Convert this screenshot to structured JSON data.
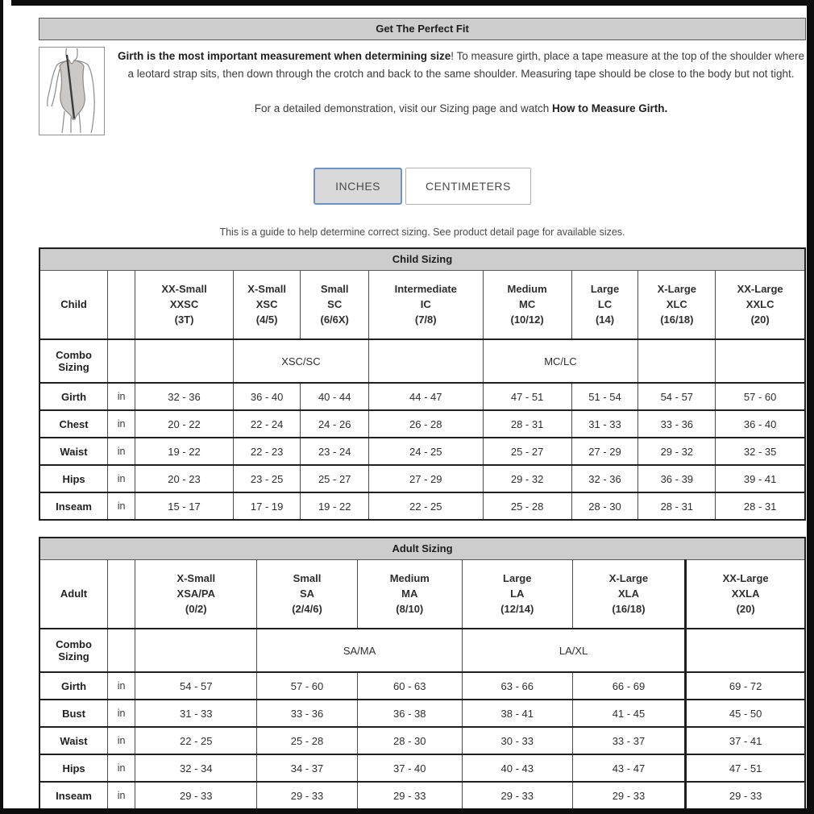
{
  "header": {
    "title": "Get The Perfect Fit"
  },
  "intro": {
    "bold": "Girth is the most important measurement when determining size",
    "rest": "! To measure girth, place a tape measure at the top of the shoulder where a leotard strap sits, then down through the crotch and back to the same shoulder. Measuring tape should be close to the body but not tight.",
    "demo_prefix": "For a detailed demonstration, visit our Sizing page and watch ",
    "demo_bold": "How to Measure Girth."
  },
  "unit_toggle": {
    "inches_label": "INCHES",
    "centimeters_label": "CENTIMETERS",
    "active": "INCHES"
  },
  "note": "This is a guide to help determine correct sizing. See product detail page for available sizes.",
  "colors": {
    "accent_button_border": "#6b93c4",
    "header_bar_bg": "#cdcdcd",
    "table_border": "#1f1f1f"
  },
  "child_table": {
    "title": "Child Sizing",
    "corner_label": "Child",
    "combo_label": "Combo Sizing",
    "columns": [
      {
        "name": "XX-Small",
        "code": "XXSC",
        "sizes": "(3T)"
      },
      {
        "name": "X-Small",
        "code": "XSC",
        "sizes": "(4/5)"
      },
      {
        "name": "Small",
        "code": "SC",
        "sizes": "(6/6X)"
      },
      {
        "name": "Intermediate",
        "code": "IC",
        "sizes": "(7/8)"
      },
      {
        "name": "Medium",
        "code": "MC",
        "sizes": "(10/12)"
      },
      {
        "name": "Large",
        "code": "LC",
        "sizes": "(14)"
      },
      {
        "name": "X-Large",
        "code": "XLC",
        "sizes": "(16/18)"
      },
      {
        "name": "XX-Large",
        "code": "XXLC",
        "sizes": "(20)"
      }
    ],
    "combo_cells": [
      {
        "span": 1,
        "text": ""
      },
      {
        "span": 2,
        "text": "XSC/SC"
      },
      {
        "span": 1,
        "text": ""
      },
      {
        "span": 2,
        "text": "MC/LC"
      },
      {
        "span": 1,
        "text": ""
      },
      {
        "span": 1,
        "text": ""
      }
    ],
    "rows": [
      {
        "label": "Girth",
        "unit": "in",
        "values": [
          "32 - 36",
          "36 - 40",
          "40 - 44",
          "44 - 47",
          "47 - 51",
          "51 - 54",
          "54 - 57",
          "57 - 60"
        ]
      },
      {
        "label": "Chest",
        "unit": "in",
        "values": [
          "20 - 22",
          "22 - 24",
          "24 - 26",
          "26 - 28",
          "28 - 31",
          "31 - 33",
          "33 - 36",
          "36 - 40"
        ]
      },
      {
        "label": "Waist",
        "unit": "in",
        "values": [
          "19 - 22",
          "22 - 23",
          "23 - 24",
          "24 - 25",
          "25 - 27",
          "27 - 29",
          "29 - 32",
          "32 - 35"
        ]
      },
      {
        "label": "Hips",
        "unit": "in",
        "values": [
          "20 - 23",
          "23 - 25",
          "25 - 27",
          "27 - 29",
          "29 - 32",
          "32 - 36",
          "36 - 39",
          "39 - 41"
        ]
      },
      {
        "label": "Inseam",
        "unit": "in",
        "values": [
          "15 - 17",
          "17 - 19",
          "19 - 22",
          "22 - 25",
          "25 - 28",
          "28 - 30",
          "28 - 31",
          "28 - 31"
        ]
      }
    ]
  },
  "adult_table": {
    "title": "Adult Sizing",
    "corner_label": "Adult",
    "combo_label": "Combo Sizing",
    "columns": [
      {
        "name": "X-Small",
        "code": "XSA/PA",
        "sizes": "(0/2)"
      },
      {
        "name": "Small",
        "code": "SA",
        "sizes": "(2/4/6)"
      },
      {
        "name": "Medium",
        "code": "MA",
        "sizes": "(8/10)"
      },
      {
        "name": "Large",
        "code": "LA",
        "sizes": "(12/14)"
      },
      {
        "name": "X-Large",
        "code": "XLA",
        "sizes": "(16/18)"
      },
      {
        "name": "XX-Large",
        "code": "XXLA",
        "sizes": "(20)"
      }
    ],
    "combo_cells": [
      {
        "span": 1,
        "text": ""
      },
      {
        "span": 2,
        "text": "SA/MA"
      },
      {
        "span": 2,
        "text": "LA/XL"
      },
      {
        "span": 1,
        "text": ""
      }
    ],
    "rows": [
      {
        "label": "Girth",
        "unit": "in",
        "values": [
          "54 - 57",
          "57 - 60",
          "60 - 63",
          "63 - 66",
          "66 - 69",
          "69 - 72"
        ]
      },
      {
        "label": "Bust",
        "unit": "in",
        "values": [
          "31 - 33",
          "33 - 36",
          "36 - 38",
          "38 - 41",
          "41 - 45",
          "45 - 50"
        ]
      },
      {
        "label": "Waist",
        "unit": "in",
        "values": [
          "22 - 25",
          "25 - 28",
          "28 - 30",
          "30 - 33",
          "33 - 37",
          "37 - 41"
        ]
      },
      {
        "label": "Hips",
        "unit": "in",
        "values": [
          "32 - 34",
          "34 - 37",
          "37 - 40",
          "40 - 43",
          "43 - 47",
          "47 - 51"
        ]
      },
      {
        "label": "Inseam",
        "unit": "in",
        "values": [
          "29 - 33",
          "29 - 33",
          "29 - 33",
          "29 - 33",
          "29 - 33",
          "29 - 33"
        ]
      }
    ]
  }
}
